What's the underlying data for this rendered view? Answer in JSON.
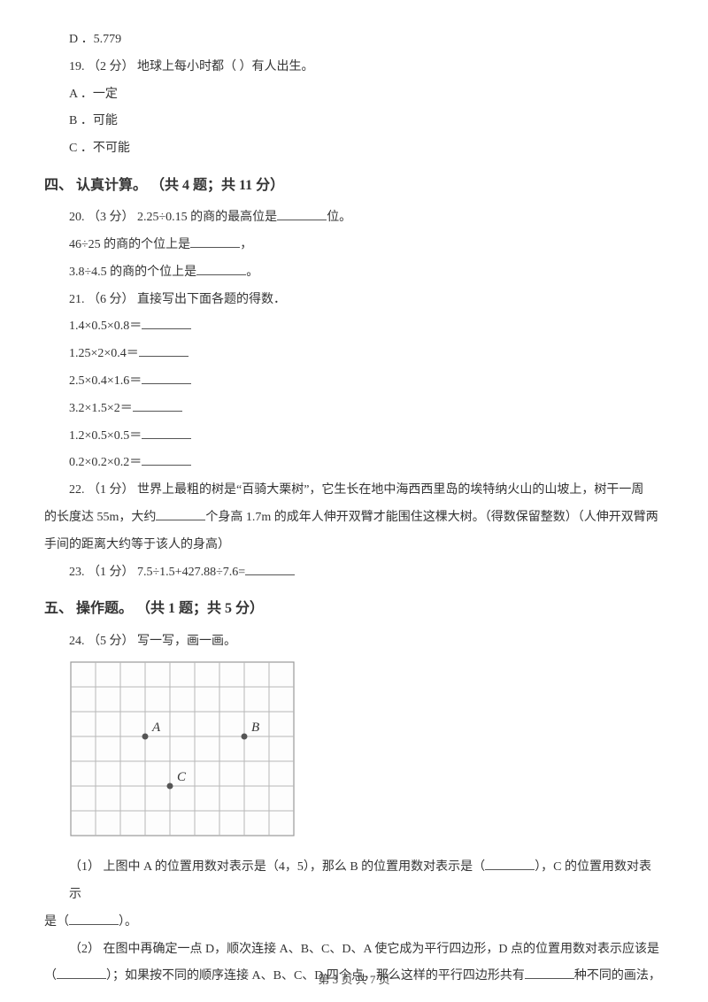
{
  "opt_d": "D ．5.779",
  "q19": {
    "stem": "19. （2 分）  地球上每小时都（     ）有人出生。",
    "a": "A ．一定",
    "b": "B ．可能",
    "c": "C ．不可能"
  },
  "section4": "四、  认真计算。 （共 4 题；共 11 分）",
  "q20": {
    "l1a": "20. （3 分）  2.25÷0.15 的商的最高位是",
    "l1b": "位。",
    "l2a": "46÷25 的商的个位上是",
    "l2b": "，",
    "l3a": "3.8÷4.5 的商的个位上是",
    "l3b": "。"
  },
  "q21": {
    "stem": "21. （6 分）  直接写出下面各题的得数．",
    "e1": "1.4×0.5×0.8＝",
    "e2": "1.25×2×0.4＝",
    "e3": "2.5×0.4×1.6＝",
    "e4": "3.2×1.5×2＝",
    "e5": "1.2×0.5×0.5＝",
    "e6": "0.2×0.2×0.2＝"
  },
  "q22": {
    "l1": "22. （1 分）  世界上最粗的树是“百骑大栗树”，它生长在地中海西西里岛的埃特纳火山的山坡上，树干一周",
    "l2a": "的长度达 55m，大约",
    "l2b": "个身高 1.7m 的成年人伸开双臂才能围住这棵大树。（得数保留整数）（人伸开双臂两",
    "l3": "手间的距离大约等于该人的身高）"
  },
  "q23": {
    "a": "23. （1 分）  7.5÷1.5+427.88÷7.6=",
    "b": ""
  },
  "section5": "五、  操作题。 （共 1 题；共 5 分）",
  "q24": {
    "stem": "24. （5 分）  写一写，画一画。",
    "p1a": "（1）  上图中 A 的位置用数对表示是（4，5），那么 B 的位置用数对表示是（",
    "p1b": "），C 的位置用数对表示",
    "p1c": "是（",
    "p1d": "）。",
    "p2a": "（2）   在图中再确定一点 D，顺次连接 A、B、C、D、A 使它成为平行四边形，D 点的位置用数对表示应该是",
    "p2b": "（",
    "p2c": "）；如果按不同的顺序连接 A、B、C、D 四个点，那么这样的平行四边形共有",
    "p2d": "种不同的画法，"
  },
  "footer": "第 3 页 共 7 页",
  "grid": {
    "cols": 9,
    "rows": 7,
    "cell": 28,
    "lineColor": "#b8b8b8",
    "borderColor": "#999999",
    "bg": "#fdfdfd",
    "labelA": "A",
    "labelB": "B",
    "labelC": "C",
    "dotColor": "#555555",
    "labelColor": "#333333",
    "labelFont": "italic 15px serif"
  }
}
